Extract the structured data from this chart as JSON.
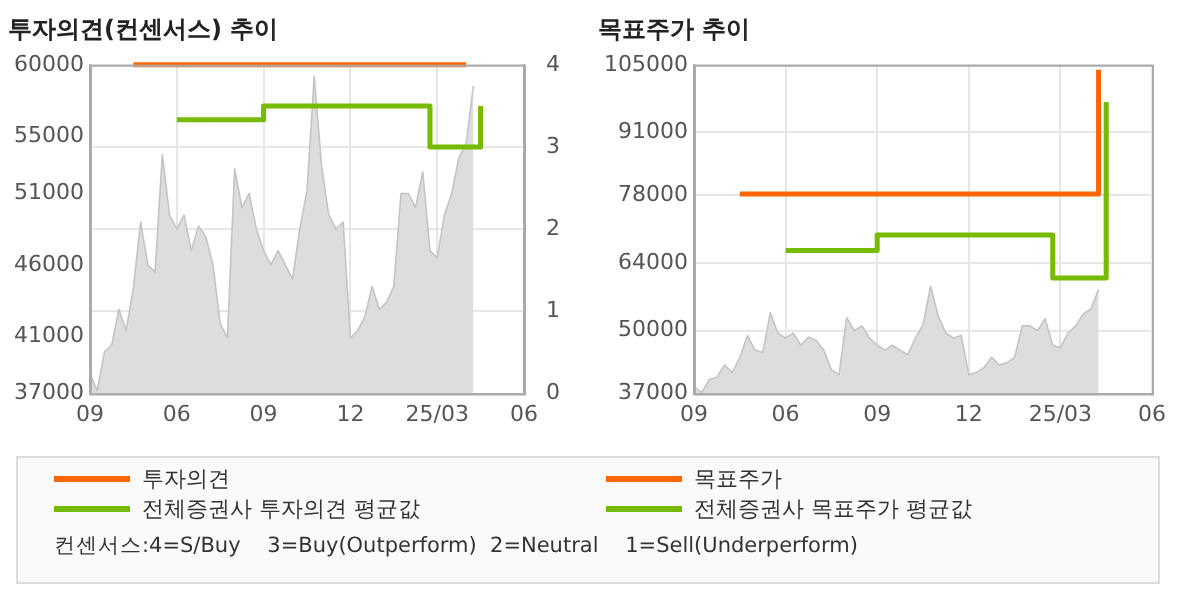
{
  "chart_data": [
    {
      "type": "area",
      "title": "투자의견(컨센서스) 추이",
      "categories": [
        "09",
        null,
        null,
        null,
        null,
        null,
        null,
        null,
        null,
        null,
        null,
        null,
        "06",
        null,
        null,
        null,
        null,
        null,
        null,
        null,
        null,
        null,
        null,
        null,
        "09",
        null,
        null,
        null,
        null,
        null,
        null,
        null,
        null,
        null,
        null,
        null,
        "12",
        null,
        null,
        null,
        null,
        null,
        null,
        null,
        null,
        null,
        null,
        null,
        "25/03",
        null,
        null,
        null,
        null,
        null,
        null,
        null,
        null,
        null,
        null,
        null,
        "06"
      ],
      "ylim": [
        37000,
        60000
      ],
      "yticks": [
        37000,
        41000,
        46000,
        51000,
        55000,
        60000
      ],
      "y2lim": [
        0,
        4
      ],
      "y2ticks": [
        0,
        1,
        2,
        3,
        4
      ],
      "grid": true,
      "legend": "bottom",
      "annotations": [
        "컨센서스:4=S/Buy    3=Buy(Outperform)  2=Neutral    1=Sell(Underperform)"
      ],
      "series": [
        {
          "color": "#dddddd",
          "values": [
            38400,
            37200,
            39900,
            40400,
            42900,
            41400,
            44400,
            49000,
            46000,
            45500,
            53700,
            49500,
            48500,
            49500,
            47000,
            48700,
            48000,
            46000,
            41900,
            40900,
            52700,
            50000,
            51000,
            48500,
            47000,
            46000,
            47000,
            46000,
            45000,
            48500,
            51200,
            59200,
            53000,
            49500,
            48500,
            49000,
            40900,
            41400,
            42400,
            44500,
            42900,
            43400,
            44500,
            51000,
            51000,
            50000,
            52500,
            47000,
            46500,
            49500,
            51000,
            53500,
            54500,
            58500,
            null,
            null,
            null,
            null,
            null,
            null,
            null
          ]
        },
        {
          "type": "step",
          "name": "투자의견",
          "color": "#ff6600",
          "axis": "y2",
          "values": [
            null,
            null,
            null,
            null,
            null,
            null,
            4,
            4,
            4,
            4,
            4,
            4,
            4,
            4,
            4,
            4,
            4,
            4,
            4,
            4,
            4,
            4,
            4,
            4,
            4,
            4,
            4,
            4,
            4,
            4,
            4,
            4,
            4,
            4,
            4,
            4,
            4,
            4,
            4,
            4,
            4,
            4,
            4,
            4,
            4,
            4,
            4,
            4,
            4,
            4,
            4,
            4,
            4,
            null,
            null,
            null,
            null,
            null,
            null,
            null,
            null
          ]
        },
        {
          "type": "step",
          "name": "전체증권사 투자의견 평균값",
          "color": "#77bb00",
          "axis": "y2",
          "values": [
            null,
            null,
            null,
            null,
            null,
            null,
            null,
            null,
            null,
            null,
            null,
            null,
            3.33,
            3.33,
            3.33,
            3.33,
            3.33,
            3.33,
            3.33,
            3.33,
            3.33,
            3.33,
            3.33,
            3.33,
            3.5,
            3.5,
            3.5,
            3.5,
            3.5,
            3.5,
            3.5,
            3.5,
            3.5,
            3.5,
            3.5,
            3.5,
            3.5,
            3.5,
            3.5,
            3.5,
            3.5,
            3.5,
            3.5,
            3.5,
            3.5,
            3.5,
            3.5,
            3,
            3,
            3,
            3,
            3,
            3,
            3,
            3.5,
            null,
            null,
            null,
            null,
            null,
            null
          ]
        }
      ]
    },
    {
      "type": "area",
      "title": "목표주가 추이",
      "categories": [
        "09",
        null,
        null,
        null,
        null,
        null,
        null,
        null,
        null,
        null,
        null,
        null,
        "06",
        null,
        null,
        null,
        null,
        null,
        null,
        null,
        null,
        null,
        null,
        null,
        "09",
        null,
        null,
        null,
        null,
        null,
        null,
        null,
        null,
        null,
        null,
        null,
        "12",
        null,
        null,
        null,
        null,
        null,
        null,
        null,
        null,
        null,
        null,
        null,
        "25/03",
        null,
        null,
        null,
        null,
        null,
        null,
        null,
        null,
        null,
        null,
        null,
        "06"
      ],
      "ylim": [
        37000,
        105000
      ],
      "yticks": [
        37000,
        50000,
        64000,
        78000,
        91000,
        105000
      ],
      "grid": true,
      "legend": "bottom",
      "series": [
        {
          "color": "#dddddd",
          "values": [
            38400,
            37200,
            39900,
            40400,
            42900,
            41400,
            44400,
            49000,
            46000,
            45500,
            53700,
            49500,
            48500,
            49500,
            47000,
            48700,
            48000,
            46000,
            41900,
            40900,
            52700,
            50000,
            51000,
            48500,
            47000,
            46000,
            47000,
            46000,
            45000,
            48500,
            51200,
            59200,
            53000,
            49500,
            48500,
            49000,
            40900,
            41400,
            42400,
            44500,
            42900,
            43400,
            44500,
            51000,
            51000,
            50000,
            52500,
            47000,
            46500,
            49500,
            51000,
            53500,
            54500,
            58500,
            null,
            null,
            null,
            null,
            null,
            null,
            null
          ]
        },
        {
          "type": "step",
          "name": "목표주가",
          "color": "#ff6600",
          "values": [
            null,
            null,
            null,
            null,
            null,
            null,
            78300,
            78300,
            78300,
            78300,
            78300,
            78300,
            78300,
            78300,
            78300,
            78300,
            78300,
            78300,
            78300,
            78300,
            78300,
            78300,
            78300,
            78300,
            78300,
            78300,
            78300,
            78300,
            78300,
            78300,
            78300,
            78300,
            78300,
            78300,
            78300,
            78300,
            78300,
            78300,
            78300,
            78300,
            78300,
            78300,
            78300,
            78300,
            78300,
            78300,
            78300,
            78300,
            78300,
            78300,
            78300,
            78300,
            78300,
            104000,
            null,
            null,
            null,
            null,
            null,
            null,
            null
          ]
        },
        {
          "type": "step",
          "name": "전체증권사 목표주가 평균값",
          "color": "#77bb00",
          "values": [
            null,
            null,
            null,
            null,
            null,
            null,
            null,
            null,
            null,
            null,
            null,
            null,
            66600,
            66600,
            66600,
            66600,
            66600,
            66600,
            66600,
            66600,
            66600,
            66600,
            66600,
            66600,
            69800,
            69800,
            69800,
            69800,
            69800,
            69800,
            69800,
            69800,
            69800,
            69800,
            69800,
            69800,
            69800,
            69800,
            69800,
            69800,
            69800,
            69800,
            69800,
            69800,
            69800,
            69800,
            69800,
            60900,
            60900,
            60900,
            60900,
            60900,
            60900,
            60900,
            97300,
            null,
            null,
            null,
            null,
            null,
            null
          ]
        }
      ]
    }
  ]
}
